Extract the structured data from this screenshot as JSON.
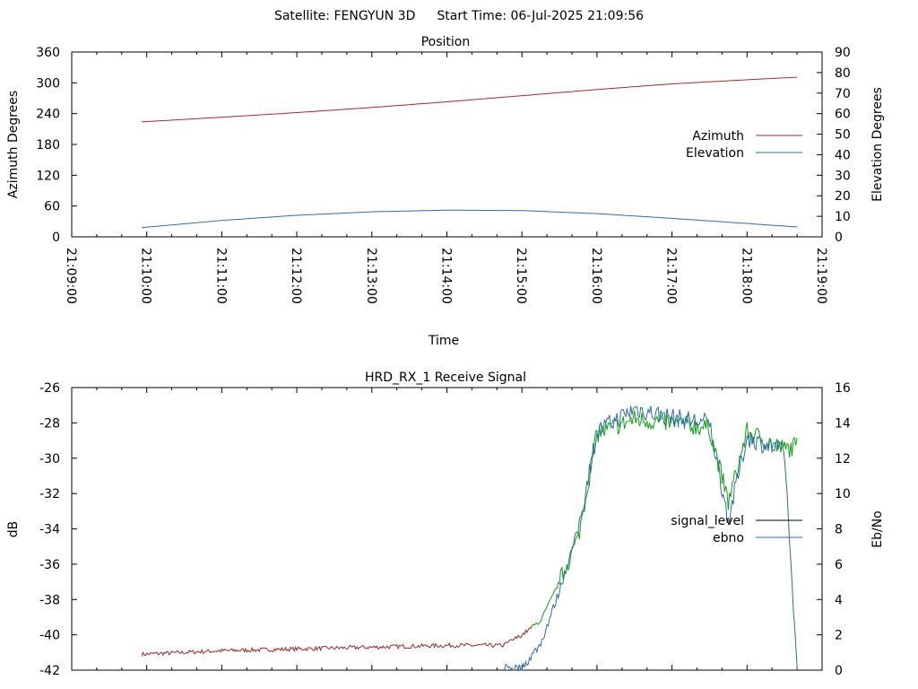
{
  "header": {
    "satellite_label": "Satellite: FENGYUN 3D",
    "start_time_label": "Start Time: 06-Jul-2025 21:09:56"
  },
  "colors": {
    "azimuth": "#9b2b2b",
    "elevation": "#2e6da4",
    "signal_level_low": "#9b2b2b",
    "signal_level_high": "#11a011",
    "ebno": "#2e6da4"
  },
  "chart_data": [
    {
      "type": "line",
      "title": "Position",
      "xlabel": "Time",
      "ylabel": "Azimuth Degrees",
      "y2label": "Elevation Degrees",
      "xlim": [
        "21:09:00",
        "21:19:00"
      ],
      "xticks": [
        "21:09:00",
        "21:10:00",
        "21:11:00",
        "21:12:00",
        "21:13:00",
        "21:14:00",
        "21:15:00",
        "21:16:00",
        "21:17:00",
        "21:18:00",
        "21:19:00"
      ],
      "ylim": [
        0,
        360
      ],
      "yticks": [
        0,
        60,
        120,
        180,
        240,
        300,
        360
      ],
      "y2lim": [
        0,
        90
      ],
      "y2ticks": [
        0,
        10,
        20,
        30,
        40,
        50,
        60,
        70,
        80,
        90
      ],
      "grid": false,
      "legend": "right",
      "x": [
        "21:09:56",
        "21:11:00",
        "21:12:00",
        "21:13:00",
        "21:14:00",
        "21:15:00",
        "21:16:00",
        "21:17:00",
        "21:18:00",
        "21:18:40"
      ],
      "series": [
        {
          "name": "Azimuth",
          "axis": "y",
          "values": [
            224,
            233,
            242,
            252,
            263,
            275,
            287,
            298,
            306,
            311
          ]
        },
        {
          "name": "Elevation",
          "axis": "y2",
          "values": [
            4.5,
            8,
            10.5,
            12.2,
            13,
            12.8,
            11.3,
            9,
            6.5,
            4.8
          ]
        }
      ]
    },
    {
      "type": "line",
      "title": "HRD_RX_1 Receive Signal",
      "ylabel": "dB",
      "y2label": "Eb/No",
      "xlim": [
        "21:09:00",
        "21:19:00"
      ],
      "ylim": [
        -42,
        -26
      ],
      "yticks": [
        -42,
        -40,
        -38,
        -36,
        -34,
        -32,
        -30,
        -28,
        -26
      ],
      "y2lim": [
        0,
        16
      ],
      "y2ticks": [
        0,
        2,
        4,
        6,
        8,
        10,
        12,
        14,
        16
      ],
      "grid": false,
      "legend": "right",
      "x": [
        "21:09:56",
        "21:11:00",
        "21:12:00",
        "21:13:00",
        "21:14:00",
        "21:14:45",
        "21:15:00",
        "21:15:15",
        "21:15:30",
        "21:15:45",
        "21:16:00",
        "21:16:30",
        "21:17:00",
        "21:17:30",
        "21:17:45",
        "21:18:00",
        "21:18:30",
        "21:18:40"
      ],
      "series": [
        {
          "name": "signal_level",
          "axis": "y",
          "values": [
            -41.1,
            -40.9,
            -40.8,
            -40.7,
            -40.6,
            -40.6,
            -40.0,
            -39.2,
            -37.0,
            -34.5,
            -28.6,
            -27.8,
            -28.0,
            -28.3,
            -32.5,
            -28.5,
            -29.5,
            -29.3
          ]
        },
        {
          "name": "ebno",
          "axis": "y2",
          "values": [
            null,
            null,
            null,
            null,
            null,
            0.2,
            0.1,
            1.5,
            4.5,
            8.0,
            13.5,
            14.8,
            14.3,
            14.0,
            8.5,
            13.2,
            12.3,
            0
          ]
        }
      ]
    }
  ]
}
